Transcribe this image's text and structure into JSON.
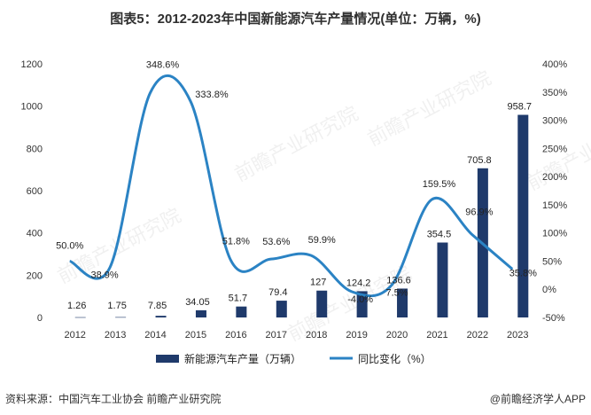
{
  "header": {
    "title": "图表5：2012-2023年中国新能源汽车产量情况(单位：万辆，%)"
  },
  "footer": {
    "source": "资料来源：中国汽车工业协会 前瞻产业研究院",
    "brand": "@前瞻经济学人APP"
  },
  "watermark": {
    "text": "前瞻产业研究院"
  },
  "colors": {
    "bar": "#1f3a6b",
    "line": "#2b83c4",
    "text": "#333333"
  },
  "chart_data": {
    "type": "bar",
    "title": "图表5：2012-2023年中国新能源汽车产量情况(单位：万辆，%)",
    "categories": [
      "2012",
      "2013",
      "2014",
      "2015",
      "2016",
      "2017",
      "2018",
      "2019",
      "2020",
      "2021",
      "2022",
      "2023"
    ],
    "series": [
      {
        "name": "新能源汽车产量（万辆）",
        "type": "bar",
        "axis": "left",
        "values": [
          1.26,
          1.75,
          7.85,
          34.05,
          51.7,
          79.4,
          127,
          124.2,
          136.6,
          354.5,
          705.8,
          958.7
        ],
        "labels": [
          "1.26",
          "1.75",
          "7.85",
          "34.05",
          "51.7",
          "79.4",
          "127",
          "124.2",
          "136.6",
          "354.5",
          "705.8",
          "958.7"
        ]
      },
      {
        "name": "同比变化（%）",
        "type": "line",
        "axis": "right",
        "values": [
          50.0,
          38.9,
          348.6,
          333.8,
          51.8,
          53.6,
          59.9,
          -4.0,
          7.5,
          159.5,
          96.9,
          35.8
        ],
        "labels": [
          "50.0%",
          "38.9%",
          "348.6%",
          "333.8%",
          "51.8%",
          "53.6%",
          "59.9%",
          "-4.0%",
          "7.5%",
          "159.5%",
          "96.9%",
          "35.8%"
        ]
      }
    ],
    "left_axis": {
      "ylim": [
        0,
        1200
      ],
      "ticks": [
        "0",
        "200",
        "400",
        "600",
        "800",
        "1000",
        "1200"
      ]
    },
    "right_axis": {
      "ylim": [
        -50,
        400
      ],
      "ticks": [
        "-50%",
        "0%",
        "50%",
        "100%",
        "150%",
        "200%",
        "250%",
        "300%",
        "350%",
        "400%"
      ]
    },
    "legend": [
      "新能源汽车产量（万辆）",
      "同比变化（%）"
    ]
  }
}
